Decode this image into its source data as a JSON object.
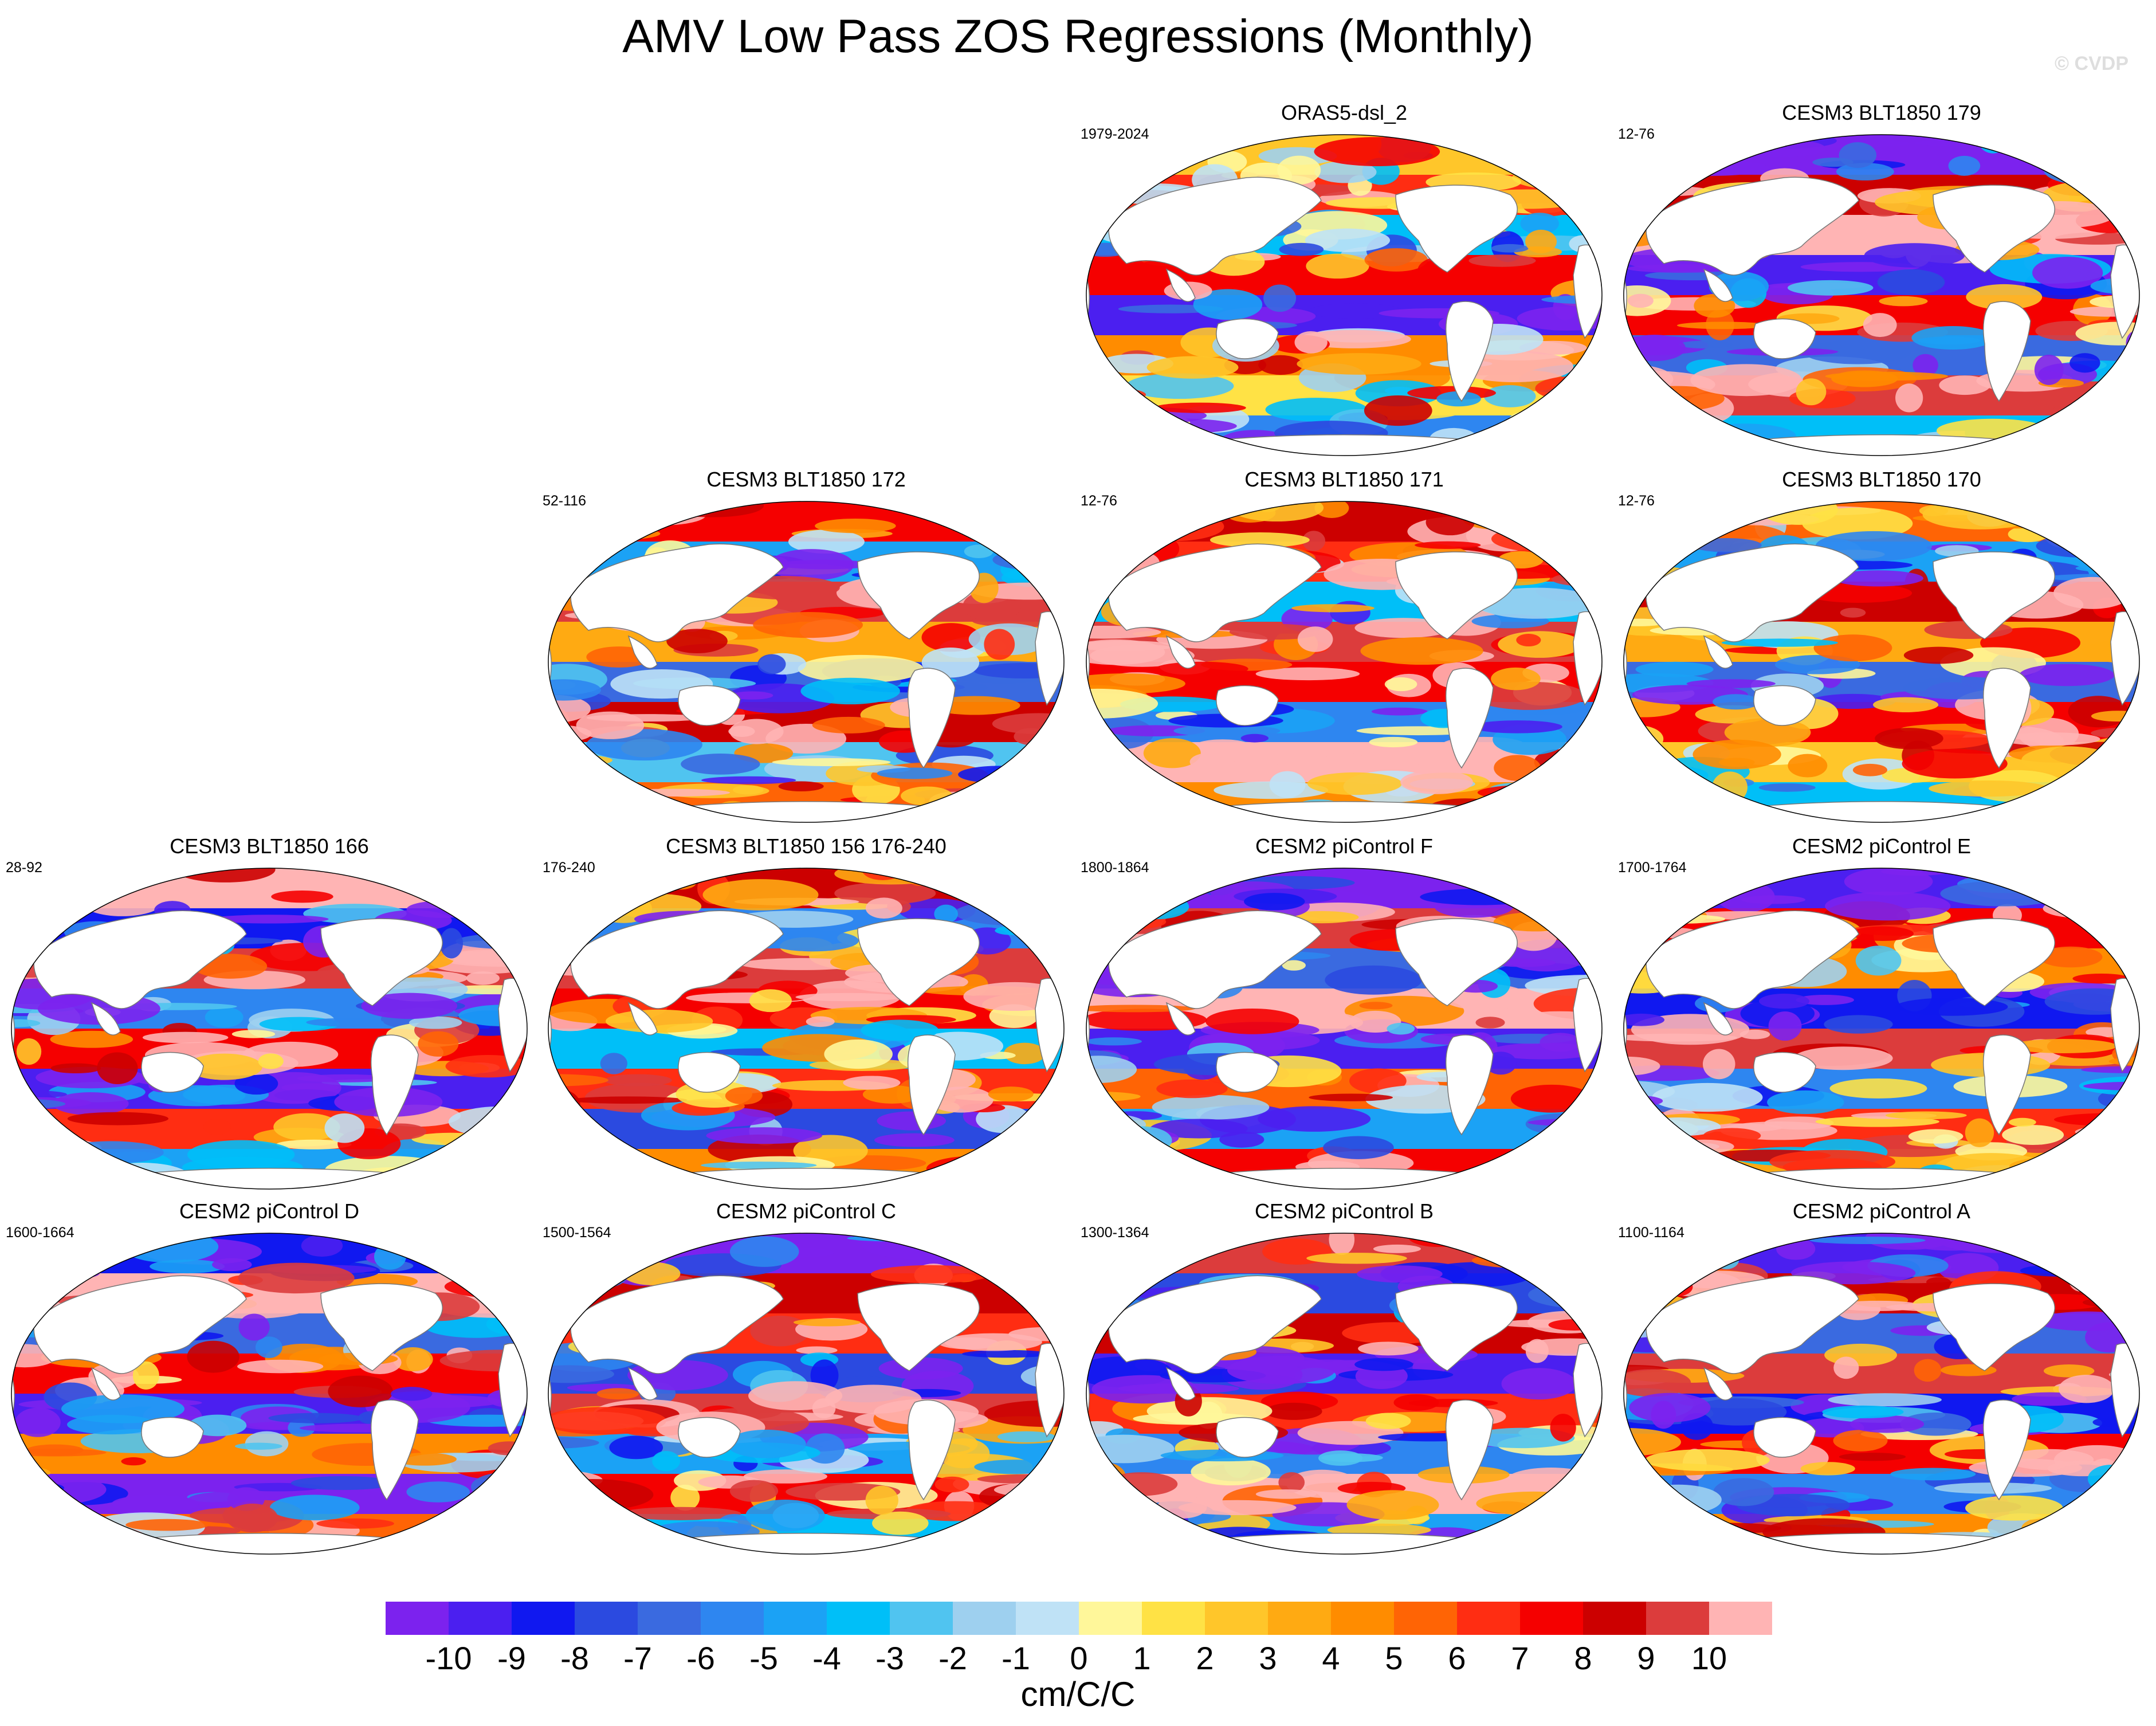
{
  "figure": {
    "title": "AMV Low Pass ZOS Regressions (Monthly)",
    "copyright": "© CVDP"
  },
  "colors": {
    "land": "#ffffff",
    "coast": "#777777"
  },
  "panels": [
    {
      "name": "ORAS5-dsl_2",
      "years": "1979-2024",
      "row": 0,
      "col": 2,
      "pattern": [
        2,
        6,
        -3,
        7,
        -9,
        4,
        1,
        -5
      ]
    },
    {
      "name": "CESM3 BLT1850 179",
      "years": "12-76",
      "row": 0,
      "col": 3,
      "pattern": [
        -10,
        8,
        10,
        -9,
        7,
        -6,
        9,
        -3
      ]
    },
    {
      "name": "CESM3 BLT1850 172",
      "years": "52-116",
      "row": 1,
      "col": 1,
      "pattern": [
        7,
        -4,
        9,
        3,
        -6,
        8,
        -2,
        5
      ]
    },
    {
      "name": "CESM3 BLT1850 171",
      "years": "12-76",
      "row": 1,
      "col": 2,
      "pattern": [
        8,
        6,
        -3,
        9,
        7,
        -5,
        10,
        4
      ]
    },
    {
      "name": "CESM3 BLT1850 170",
      "years": "12-76",
      "row": 1,
      "col": 3,
      "pattern": [
        5,
        -4,
        8,
        3,
        -6,
        7,
        2,
        -3
      ]
    },
    {
      "name": "CESM3 BLT1850 166",
      "years": "28-92",
      "row": 2,
      "col": 0,
      "pattern": [
        10,
        -8,
        9,
        -5,
        7,
        -9,
        6,
        -4
      ]
    },
    {
      "name": "CESM3 BLT1850 156 176-240",
      "years": "176-240",
      "row": 2,
      "col": 1,
      "pattern": [
        8,
        -5,
        9,
        7,
        -3,
        6,
        -7,
        4
      ]
    },
    {
      "name": "CESM2 piControl F",
      "years": "1800-1864",
      "row": 2,
      "col": 2,
      "pattern": [
        -10,
        9,
        -6,
        10,
        -9,
        5,
        -4,
        7
      ]
    },
    {
      "name": "CESM2 piControl E",
      "years": "1700-1764",
      "row": 2,
      "col": 3,
      "pattern": [
        -9,
        7,
        4,
        -8,
        9,
        -5,
        6,
        3
      ]
    },
    {
      "name": "CESM2 piControl D",
      "years": "1600-1664",
      "row": 3,
      "col": 0,
      "pattern": [
        -8,
        10,
        -6,
        7,
        -9,
        4,
        -10,
        5
      ]
    },
    {
      "name": "CESM2 piControl C",
      "years": "1500-1564",
      "row": 3,
      "col": 1,
      "pattern": [
        -10,
        8,
        6,
        -7,
        9,
        -4,
        7,
        -3
      ]
    },
    {
      "name": "CESM2 piControl B",
      "years": "1300-1364",
      "row": 3,
      "col": 2,
      "pattern": [
        9,
        -7,
        8,
        -9,
        6,
        -5,
        10,
        -4
      ]
    },
    {
      "name": "CESM2 piControl A",
      "years": "1100-1164",
      "row": 3,
      "col": 3,
      "pattern": [
        -9,
        8,
        -6,
        9,
        -8,
        7,
        -5,
        4
      ]
    }
  ],
  "colorbar": {
    "ticks": [
      "-10",
      "-9",
      "-8",
      "-7",
      "-6",
      "-5",
      "-4",
      "-3",
      "-2",
      "-1",
      "0",
      "1",
      "2",
      "3",
      "4",
      "5",
      "6",
      "7",
      "8",
      "9",
      "10"
    ],
    "colors": [
      "#7c22ee",
      "#4b1ff0",
      "#1018f0",
      "#2b4ae0",
      "#3a6ae0",
      "#2e86f0",
      "#1ba2f5",
      "#00bff8",
      "#50c4f0",
      "#9ed0ef",
      "#bfe2f6",
      "#fff79a",
      "#ffe245",
      "#ffc62a",
      "#ffaa12",
      "#ff8c00",
      "#ff6405",
      "#ff2d12",
      "#f50000",
      "#cc0000",
      "#dc3c3c",
      "#ffb4b4"
    ],
    "units": "cm/C/C"
  }
}
